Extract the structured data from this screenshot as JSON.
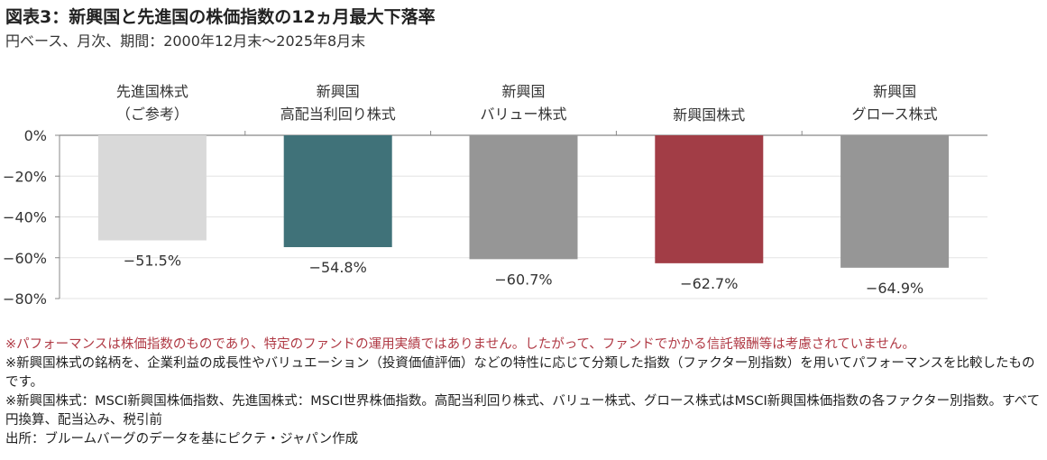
{
  "header": {
    "title": "図表3：新興国と先進国の株価指数の12ヵ月最大下落率",
    "subtitle": "円ベース、月次、期間：2000年12月末～2025年8月末"
  },
  "chart_data": {
    "type": "bar",
    "categories": [
      [
        "先進国株式",
        "（ご参考）"
      ],
      [
        "新興国",
        "高配当利回り株式"
      ],
      [
        "新興国",
        "バリュー株式"
      ],
      [
        "新興国株式"
      ],
      [
        "新興国",
        "グロース株式"
      ]
    ],
    "values": [
      -51.5,
      -54.8,
      -60.7,
      -62.7,
      -64.9
    ],
    "value_labels": [
      "−51.5%",
      "−54.8%",
      "−60.7%",
      "−62.7%",
      "−64.9%"
    ],
    "bar_colors": [
      "#d9d9d9",
      "#407279",
      "#969696",
      "#a23d46",
      "#969696"
    ],
    "ylim": [
      -80,
      0
    ],
    "yticks": [
      0,
      -20,
      -40,
      -60,
      -80
    ],
    "ytick_labels": [
      "0%",
      "−20%",
      "−40%",
      "−60%",
      "−80%"
    ],
    "grid": true
  },
  "notes": {
    "disclaimer": "※パフォーマンスは株価指数のものであり、特定のファンドの運用実績ではありません。したがって、ファンドでかかる信託報酬等は考慮されていません。",
    "classification": "※新興国株式の銘柄を、企業利益の成長性やバリュエーション（投資価値評価）などの特性に応じて分類した指数（ファクター別指数）を用いてパフォーマンスを比較したものです。",
    "indices": "※新興国株式：MSCI新興国株価指数、先進国株式：MSCI世界株価指数。高配当利回り株式、バリュー株式、グロース株式はMSCI新興国株価指数の各ファクター別指数。すべて円換算、配当込み、税引前",
    "source": "出所：ブルームバーグのデータを基にピクテ・ジャパン作成"
  },
  "colors": {
    "grid": "#e3e3e3",
    "axis": "#888888",
    "note_red": "#b03a45"
  }
}
